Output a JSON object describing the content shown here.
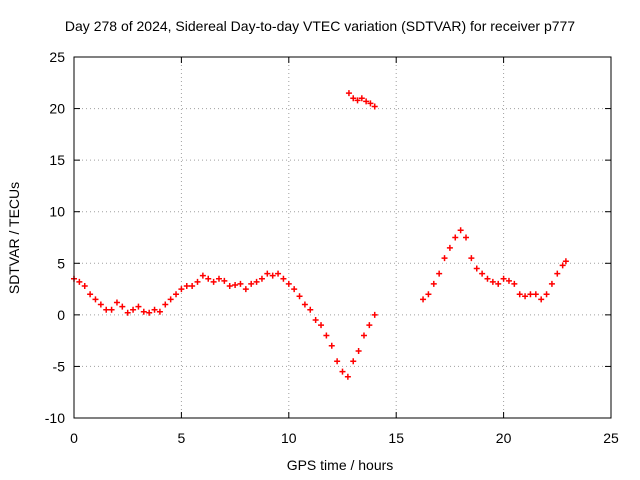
{
  "chart_data": {
    "type": "scatter",
    "title": "Day 278 of 2024, Sidereal Day-to-day VTEC variation (SDTVAR) for receiver p777",
    "xlabel": "GPS time / hours",
    "ylabel": "SDTVAR / TECUs",
    "xlim": [
      0,
      25
    ],
    "ylim": [
      -10,
      25
    ],
    "xticks": [
      0,
      5,
      10,
      15,
      20,
      25
    ],
    "yticks": [
      -10,
      -5,
      0,
      5,
      10,
      15,
      20,
      25
    ],
    "grid": true,
    "marker": "plus",
    "color": "#ff0000",
    "series": [
      {
        "name": "SDTVAR",
        "x": [
          0.0,
          0.25,
          0.5,
          0.75,
          1.0,
          1.25,
          1.5,
          1.75,
          2.0,
          2.25,
          2.5,
          2.75,
          3.0,
          3.25,
          3.5,
          3.75,
          4.0,
          4.25,
          4.5,
          4.75,
          5.0,
          5.25,
          5.5,
          5.75,
          6.0,
          6.25,
          6.5,
          6.75,
          7.0,
          7.25,
          7.5,
          7.75,
          8.0,
          8.25,
          8.5,
          8.75,
          9.0,
          9.25,
          9.5,
          9.75,
          10.0,
          10.25,
          10.5,
          10.75,
          11.0,
          11.25,
          11.5,
          11.75,
          12.0,
          12.25,
          12.5,
          12.75,
          13.0,
          13.25,
          13.5,
          13.75,
          14.0,
          16.25,
          16.5,
          16.75,
          17.0,
          17.25,
          17.5,
          17.75,
          18.0,
          18.25,
          18.5,
          18.75,
          19.0,
          19.25,
          19.5,
          19.75,
          20.0,
          20.25,
          20.5,
          20.75,
          21.0,
          21.25,
          21.5,
          21.75,
          22.0,
          22.25,
          22.5,
          22.75,
          22.9,
          12.8,
          13.0,
          13.2,
          13.4,
          13.6,
          13.8,
          14.0
        ],
        "y": [
          3.5,
          3.2,
          2.8,
          2.0,
          1.5,
          1.0,
          0.5,
          0.5,
          1.2,
          0.8,
          0.2,
          0.5,
          0.8,
          0.3,
          0.2,
          0.5,
          0.3,
          1.0,
          1.5,
          2.0,
          2.5,
          2.8,
          2.8,
          3.2,
          3.8,
          3.5,
          3.2,
          3.5,
          3.3,
          2.8,
          2.9,
          3.0,
          2.5,
          3.0,
          3.2,
          3.5,
          4.0,
          3.8,
          4.0,
          3.5,
          3.0,
          2.5,
          1.8,
          1.0,
          0.5,
          -0.5,
          -1.0,
          -2.0,
          -3.0,
          -4.5,
          -5.5,
          -6.0,
          -4.5,
          -3.5,
          -2.0,
          -1.0,
          0.0,
          1.5,
          2.0,
          3.0,
          4.0,
          5.5,
          6.5,
          7.5,
          8.2,
          7.5,
          5.5,
          4.5,
          4.0,
          3.5,
          3.2,
          3.0,
          3.5,
          3.3,
          3.0,
          2.0,
          1.8,
          2.0,
          2.0,
          1.5,
          2.0,
          3.0,
          4.0,
          4.8,
          5.2,
          21.5,
          21.0,
          20.8,
          21.0,
          20.7,
          20.5,
          20.2
        ]
      }
    ]
  }
}
